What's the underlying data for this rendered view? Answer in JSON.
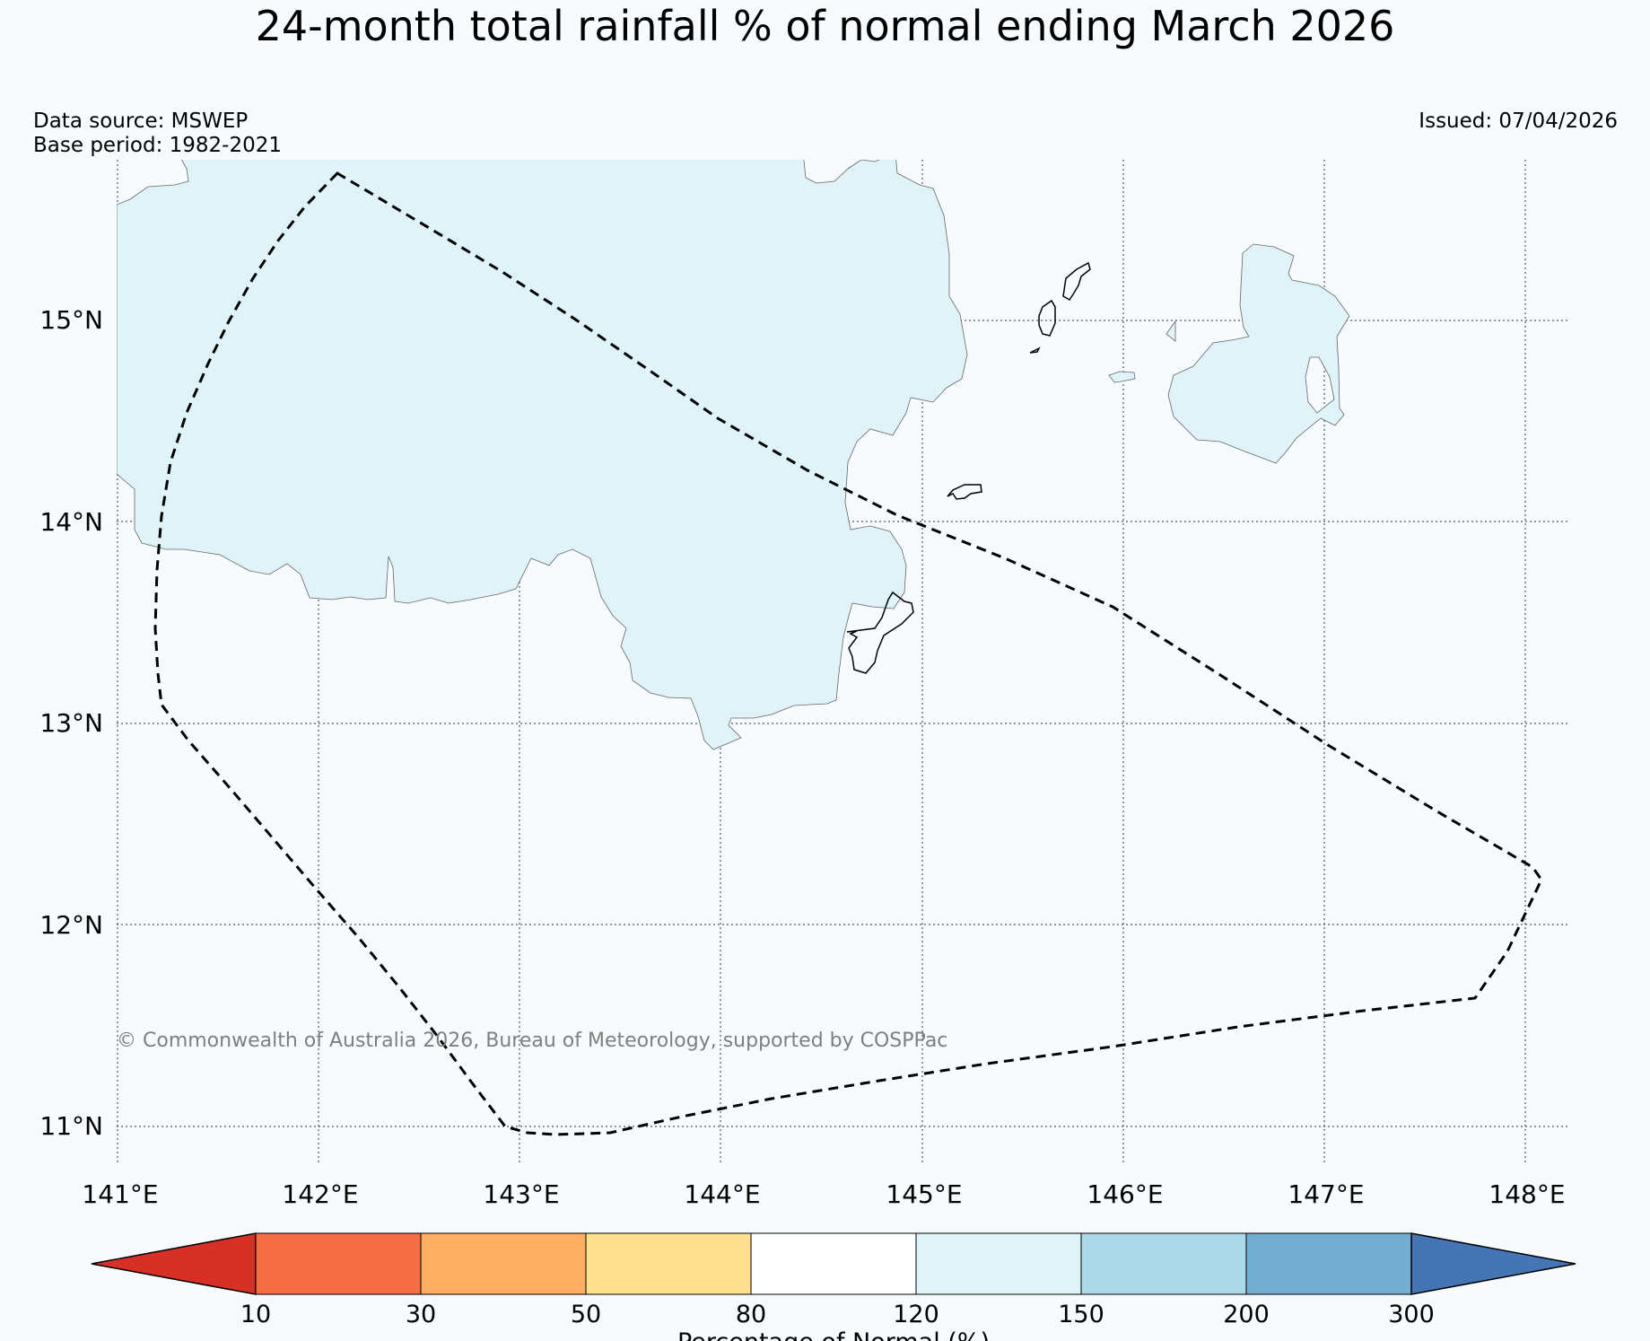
{
  "title": "24-month total rainfall % of normal ending March 2026",
  "meta": {
    "data_source": "Data source: MSWEP",
    "base_period": "Base period: 1982-2021",
    "issued": "Issued: 07/04/2026"
  },
  "map": {
    "lat_labels": [
      "15°N",
      "14°N",
      "13°N",
      "12°N",
      "11°N"
    ],
    "lon_labels": [
      "141°E",
      "142°E",
      "143°E",
      "144°E",
      "145°E",
      "146°E",
      "147°E",
      "148°E"
    ],
    "copyright": "© Commonwealth of Australia 2026, Bureau of Meteorology, supported by COSPPac"
  },
  "colorbar": {
    "tick_labels": [
      "10",
      "30",
      "50",
      "80",
      "120",
      "150",
      "200",
      "300"
    ],
    "label": "Percentage of Normal (%)",
    "colors": [
      "#d73027",
      "#f46d43",
      "#fdae61",
      "#fee090",
      "#ffffff",
      "#e0f3f8",
      "#abd9e9",
      "#74add1",
      "#4575b4"
    ]
  }
}
